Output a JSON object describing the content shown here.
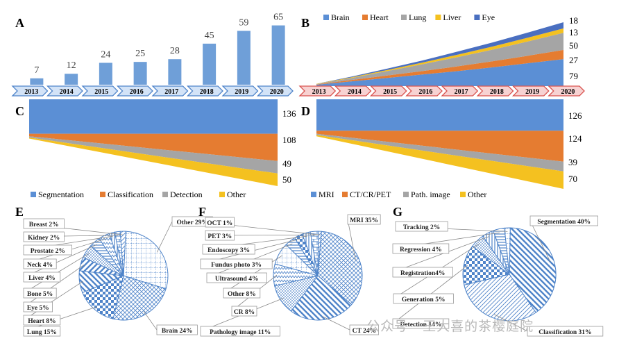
{
  "colors": {
    "blue": "#5b8fd5",
    "barBlue": "#6f9fd8",
    "orange": "#e57c31",
    "gray": "#a5a5a5",
    "yellow": "#f4c120",
    "darkBlue": "#4a6fc0",
    "pieBlue": "#4f84c9",
    "arrowBlueFill": "#d3e3f7",
    "arrowRedFill": "#f7d2d2"
  },
  "watermark": "公众号 · 王大喜的茶樱庭院",
  "chart_data": [
    {
      "id": "A",
      "panel_label": "A",
      "type": "bar",
      "categories": [
        "2013",
        "2014",
        "2015",
        "2016",
        "2017",
        "2018",
        "2019",
        "2020"
      ],
      "values": [
        7,
        12,
        24,
        25,
        28,
        45,
        59,
        65
      ],
      "value_labels": [
        "7",
        "12",
        "24",
        "25",
        "28",
        "45",
        "59",
        "65"
      ],
      "ylim": [
        0,
        70
      ]
    },
    {
      "id": "B",
      "panel_label": "B",
      "type": "area",
      "stacked": true,
      "categories": [
        "2013",
        "2014",
        "2015",
        "2016",
        "2017",
        "2018",
        "2019",
        "2020"
      ],
      "legend": [
        "Brain",
        "Heart",
        "Lung",
        "Liver",
        "Eye"
      ],
      "series": [
        {
          "name": "Brain",
          "values": [
            4,
            14,
            24,
            34,
            44,
            55,
            67,
            79
          ]
        },
        {
          "name": "Heart",
          "values": [
            1,
            4,
            7,
            10,
            14,
            18,
            22,
            27
          ]
        },
        {
          "name": "Lung",
          "values": [
            1,
            6,
            13,
            20,
            27,
            34,
            42,
            50
          ]
        },
        {
          "name": "Liver",
          "values": [
            1,
            2,
            3,
            5,
            7,
            9,
            11,
            13
          ]
        },
        {
          "name": "Eye",
          "values": [
            0,
            2,
            4,
            6,
            9,
            12,
            15,
            18
          ]
        }
      ],
      "end_labels": [
        "18",
        "13",
        "50",
        "27",
        "79"
      ]
    },
    {
      "id": "C",
      "panel_label": "C",
      "type": "area",
      "stacked": true,
      "legend": [
        "Segmentation",
        "Classification",
        "Detection",
        "Other"
      ],
      "series": [
        {
          "name": "Segmentation",
          "values": [
            136,
            136
          ]
        },
        {
          "name": "Classification",
          "values": [
            10,
            108
          ]
        },
        {
          "name": "Detection",
          "values": [
            5,
            49
          ]
        },
        {
          "name": "Other",
          "values": [
            4,
            50
          ]
        }
      ],
      "end_labels": [
        "136",
        "108",
        "49",
        "50"
      ]
    },
    {
      "id": "D",
      "panel_label": "D",
      "type": "area",
      "stacked": true,
      "legend": [
        "MRI",
        "CT/CR/PET",
        "Path. image",
        "Other"
      ],
      "series": [
        {
          "name": "MRI",
          "values": [
            126,
            126
          ]
        },
        {
          "name": "CT/CR/PET",
          "values": [
            12,
            124
          ]
        },
        {
          "name": "Path. image",
          "values": [
            5,
            39
          ]
        },
        {
          "name": "Other",
          "values": [
            5,
            70
          ]
        }
      ],
      "end_labels": [
        "126",
        "124",
        "39",
        "70"
      ]
    },
    {
      "id": "E",
      "panel_label": "E",
      "type": "pie",
      "slices": [
        {
          "label": "Other 29%",
          "value": 29
        },
        {
          "label": "Brain 24%",
          "value": 24
        },
        {
          "label": "Lung 15%",
          "value": 15
        },
        {
          "label": "Heart 8%",
          "value": 8
        },
        {
          "label": "Eye 5%",
          "value": 5
        },
        {
          "label": "Bone 5%",
          "value": 5
        },
        {
          "label": "Liver 4%",
          "value": 4
        },
        {
          "label": "Neck 4%",
          "value": 4
        },
        {
          "label": "Prostate 2%",
          "value": 2
        },
        {
          "label": "Kidney 2%",
          "value": 2
        },
        {
          "label": "Breast 2%",
          "value": 2
        }
      ]
    },
    {
      "id": "F",
      "panel_label": "F",
      "type": "pie",
      "slices": [
        {
          "label": "MRI 35%",
          "value": 35
        },
        {
          "label": "CT 24%",
          "value": 24
        },
        {
          "label": "Pathology image 11%",
          "value": 11
        },
        {
          "label": "CR 8%",
          "value": 8
        },
        {
          "label": "Other 8%",
          "value": 8
        },
        {
          "label": "Ultrasound  4%",
          "value": 4
        },
        {
          "label": "Fundus  photo  3%",
          "value": 3
        },
        {
          "label": "Endoscopy 3%",
          "value": 3
        },
        {
          "label": "PET 3%",
          "value": 3
        },
        {
          "label": "OCT 1%",
          "value": 1
        }
      ]
    },
    {
      "id": "G",
      "panel_label": "G",
      "type": "pie",
      "slices": [
        {
          "label": "Segmentation 40%",
          "value": 40
        },
        {
          "label": "Classification 31%",
          "value": 31
        },
        {
          "label": "Detection 14%",
          "value": 14
        },
        {
          "label": "Generation  5%",
          "value": 5
        },
        {
          "label": "Registration4%",
          "value": 4
        },
        {
          "label": "Regression 4%",
          "value": 4
        },
        {
          "label": "Tracking  2%",
          "value": 2
        }
      ]
    }
  ]
}
